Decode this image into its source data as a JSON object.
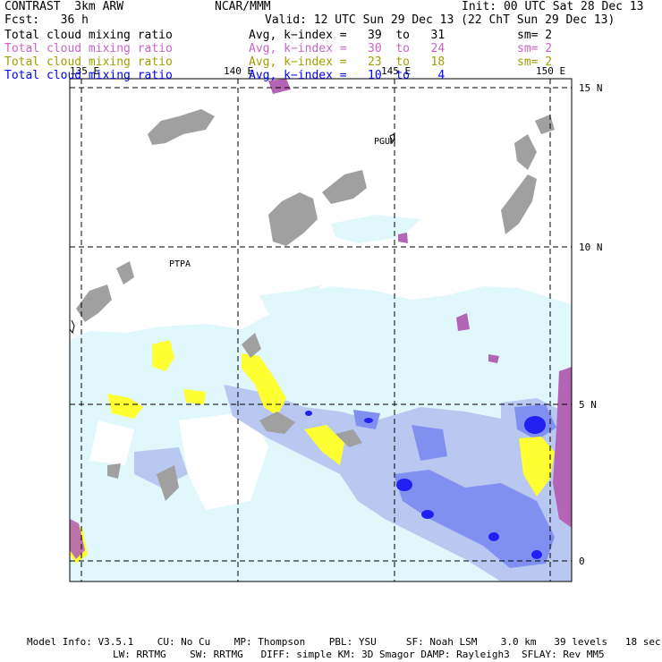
{
  "header": {
    "model": "CONTRAST  3km ARW",
    "org": "NCAR/MMM",
    "init": "Init: 00 UTC Sat 28 Dec 13",
    "fcst": "Fcst:   36 h",
    "valid": "Valid: 12 UTC Sun 29 Dec 13 (22 ChT Sun 29 Dec 13)"
  },
  "fields": [
    {
      "name": "Total cloud mixing ratio",
      "range": "Avg, k−index =   39  to   31",
      "sm": "sm= 2",
      "color": "#000000"
    },
    {
      "name": "Total cloud mixing ratio",
      "range": "Avg, k−index =   30  to   24",
      "sm": "sm= 2",
      "color": "#c864c8"
    },
    {
      "name": "Total cloud mixing ratio",
      "range": "Avg, k−index =   23  to   18",
      "sm": "sm= 2",
      "color": "#a0a000"
    },
    {
      "name": "Total cloud mixing ratio",
      "range": "Avg, k−index =   10  to    4",
      "sm": "",
      "color": "#0000ff"
    }
  ],
  "map": {
    "lon_labels": [
      "135 E",
      "140 E",
      "145 E",
      "150 E"
    ],
    "lat_labels": [
      "15 N",
      "10 N",
      "5 N",
      "0"
    ],
    "stations": [
      "PGUM",
      "PTPA"
    ]
  },
  "footer": {
    "line1": "Model Info: V3.5.1    CU: No Cu    MP: Thompson    PBL: YSU     SF: Noah LSM    3.0 km   39 levels   18 sec",
    "line2": "LW: RRTMG    SW: RRTMG   DIFF: simple KM: 3D Smagor DAMP: Rayleigh3  SFLAY: Rev MM5"
  },
  "colors": {
    "gray_cloud": "#a0a0a0",
    "purple_cloud": "#b464b4",
    "yellow_cloud": "#ffff32",
    "light_cyan": "#e0f8fc",
    "blue_light": "#b8c8f0",
    "blue_mid": "#8090f0",
    "blue_dark": "#2020f0"
  }
}
